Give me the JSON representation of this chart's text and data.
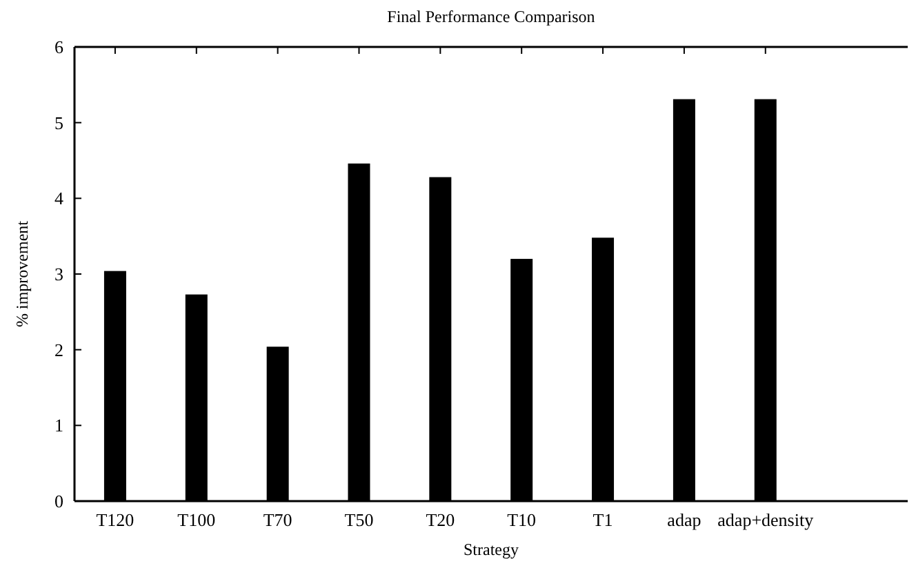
{
  "chart_data": {
    "type": "bar",
    "title": "Final Performance Comparison",
    "xlabel": "Strategy",
    "ylabel": "% improvement",
    "categories": [
      "T120",
      "T100",
      "T70",
      "T50",
      "T20",
      "T10",
      "T1",
      "adap",
      "adap+density"
    ],
    "values": [
      3.04,
      2.73,
      2.04,
      4.46,
      4.28,
      3.2,
      3.48,
      5.31,
      5.31
    ],
    "color": "#000000",
    "ylim": [
      0,
      6
    ],
    "yticks": [
      0,
      1,
      2,
      3,
      4,
      5,
      6
    ],
    "grid": false
  }
}
